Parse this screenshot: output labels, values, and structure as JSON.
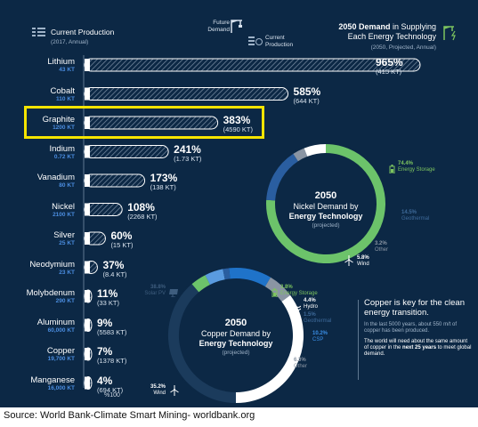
{
  "header": {
    "current_production": "Current Production",
    "current_production_sub": "(2017, Annual)",
    "future_demand": "Future Demand",
    "current_production_small": "Current Production",
    "demand_title_bold": "2050 Demand",
    "demand_title_rest": " in Supplying Each Energy Technology",
    "demand_sub": "(2050, Projected, Annual)"
  },
  "colors": {
    "background": "#0c2845",
    "bar_line": "#ffffff",
    "production_blue": "#4b8de0",
    "green": "#7dc45f",
    "highlight": "#f5e400"
  },
  "chart_data": [
    {
      "type": "bar",
      "categories": [
        "Lithium",
        "Cobalt",
        "Graphite",
        "Indium",
        "Vanadium",
        "Nickel",
        "Silver",
        "Neodymium",
        "Molybdenum",
        "Aluminum",
        "Copper",
        "Manganese"
      ],
      "current_production": [
        "43 KT",
        "110 KT",
        "1200 KT",
        "0.72 KT",
        "80 KT",
        "2100 KT",
        "25 KT",
        "23 KT",
        "290 KT",
        "60,000 KT",
        "19,700 KT",
        "16,000 KT"
      ],
      "series": [
        {
          "values": [
            965,
            585,
            383,
            241,
            173,
            108,
            60,
            37,
            11,
            9,
            7,
            4
          ]
        }
      ],
      "value_labels": [
        "965%",
        "585%",
        "383%",
        "241%",
        "173%",
        "108%",
        "60%",
        "37%",
        "11%",
        "9%",
        "7%",
        "4%"
      ],
      "demand_labels": [
        "(415 KT)",
        "(644 KT)",
        "(4590 KT)",
        "(1.73 KT)",
        "(138 KT)",
        "(2268 KT)",
        "(15 KT)",
        "(8.4 KT)",
        "(33 KT)",
        "(5583 KT)",
        "(1378 KT)",
        "(694 KT)"
      ],
      "xlabel": "%100",
      "highlighted": "Graphite"
    },
    {
      "type": "pie",
      "title_year": "2050",
      "title_line1": "Nickel Demand by",
      "title_bold": "Energy Technology",
      "title_sub": "(projected)",
      "slices": [
        {
          "name": "Energy Storage",
          "value": 74.4,
          "label": "74.4%",
          "color": "#6cc36a"
        },
        {
          "name": "Geothermal",
          "value": 14.5,
          "label": "14.5%",
          "color": "#2a5ea0"
        },
        {
          "name": "Other",
          "value": 3.2,
          "label": "3.2%",
          "color": "#8a95a3"
        },
        {
          "name": "Wind",
          "value": 5.8,
          "label": "5.8%",
          "color": "#ffffff"
        }
      ]
    },
    {
      "type": "pie",
      "title_year": "2050",
      "title_line1": "Copper Demand by",
      "title_bold": "Energy Technology",
      "title_sub": "(projected)",
      "slices": [
        {
          "name": "Solar PV",
          "value": 38.8,
          "label": "38.8%",
          "color": "#1b3b5c"
        },
        {
          "name": "Energy Storage",
          "value": 3.8,
          "label": "3.8%",
          "color": "#6cc36a"
        },
        {
          "name": "Hydro",
          "value": 4.4,
          "label": "4.4%",
          "color": "#5a9be0"
        },
        {
          "name": "Geothermal",
          "value": 1.5,
          "label": "1.5%",
          "color": "#2a5ea0"
        },
        {
          "name": "CSP",
          "value": 10.2,
          "label": "10.2%",
          "color": "#1f73c9"
        },
        {
          "name": "Other",
          "value": 6.3,
          "label": "6.3%",
          "color": "#8a95a3"
        },
        {
          "name": "Wind",
          "value": 35.2,
          "label": "35.2%",
          "color": "#ffffff"
        }
      ]
    }
  ],
  "note": {
    "headline": "Copper is key for the clean energy transition.",
    "fact1": "In the last 5000 years, about 550 m/t of copper has been produced.",
    "fact2_pre": "The world will need about the same amount of copper in the ",
    "fact2_bold": "next 25 years",
    "fact2_post": " to meet global demand."
  },
  "source": "Source: World Bank-Climate Smart Mining- worldbank.org"
}
